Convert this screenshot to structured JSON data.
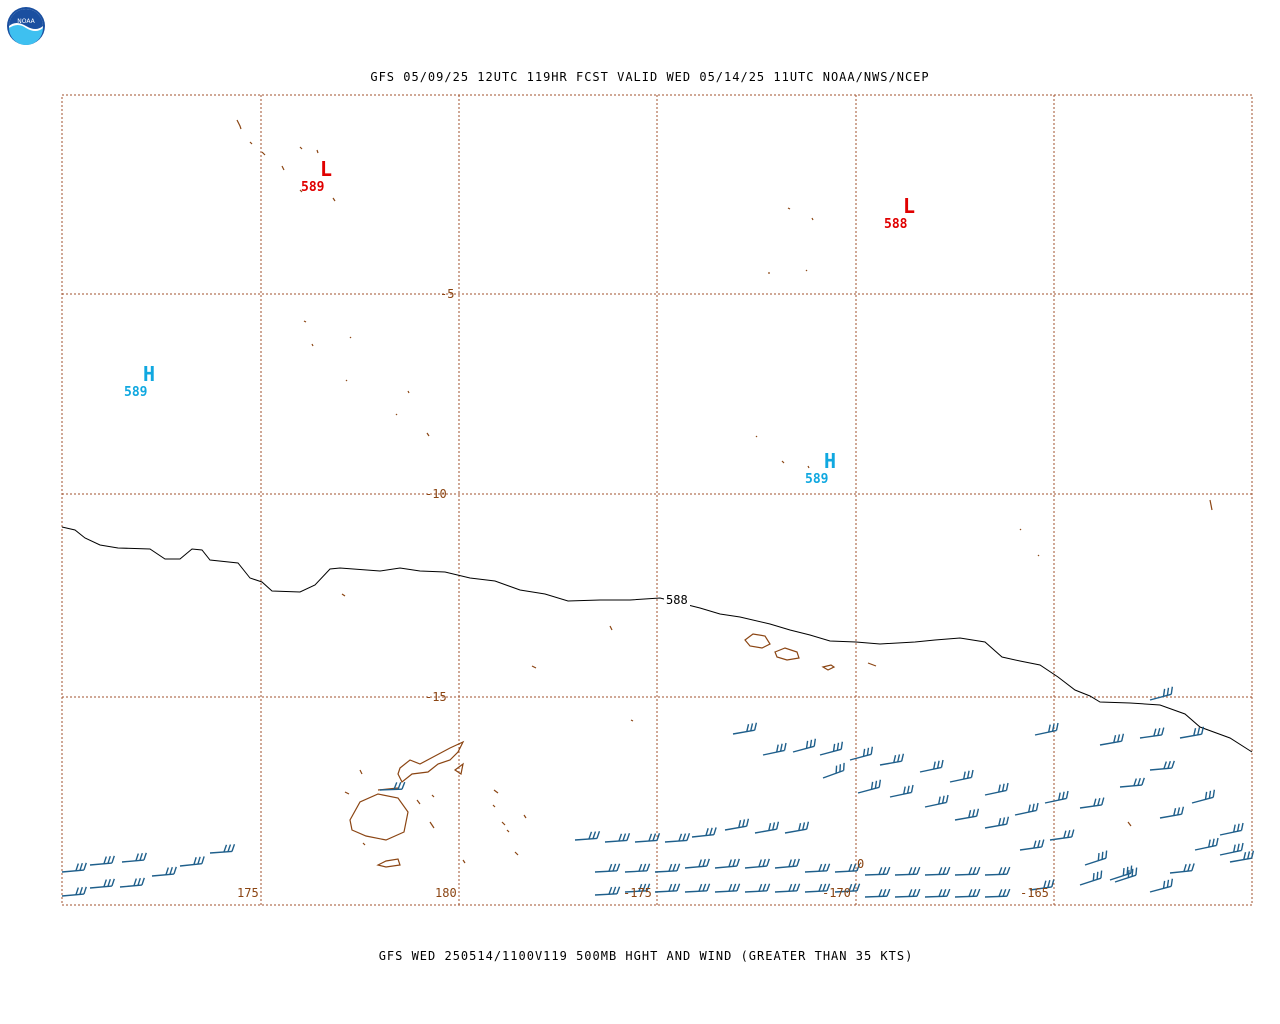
{
  "header": {
    "top_title": "GFS 05/09/25 12UTC 119HR FCST VALID WED 05/14/25 11UTC NOAA/NWS/NCEP",
    "bottom_title": "GFS WED 250514/1100V119 500MB HGHT AND WIND (GREATER THAN 35 KTS)",
    "logo_text": "NOAA"
  },
  "map": {
    "lat_labels": [
      "-5",
      "-10",
      "-15"
    ],
    "lon_labels": [
      "175",
      "180",
      "-175",
      "-170",
      "-165"
    ],
    "contour_label": "588",
    "extra_mark": "0",
    "colors": {
      "grid": "#a0522d",
      "coast": "#8b4513",
      "barbs": "#1f5f8b",
      "contour": "#000000",
      "low": "#e00000",
      "high": "#10a8e0"
    }
  },
  "centers": [
    {
      "type": "L",
      "value": "589"
    },
    {
      "type": "L",
      "value": "588"
    },
    {
      "type": "H",
      "value": "589"
    },
    {
      "type": "H",
      "value": "589"
    }
  ]
}
